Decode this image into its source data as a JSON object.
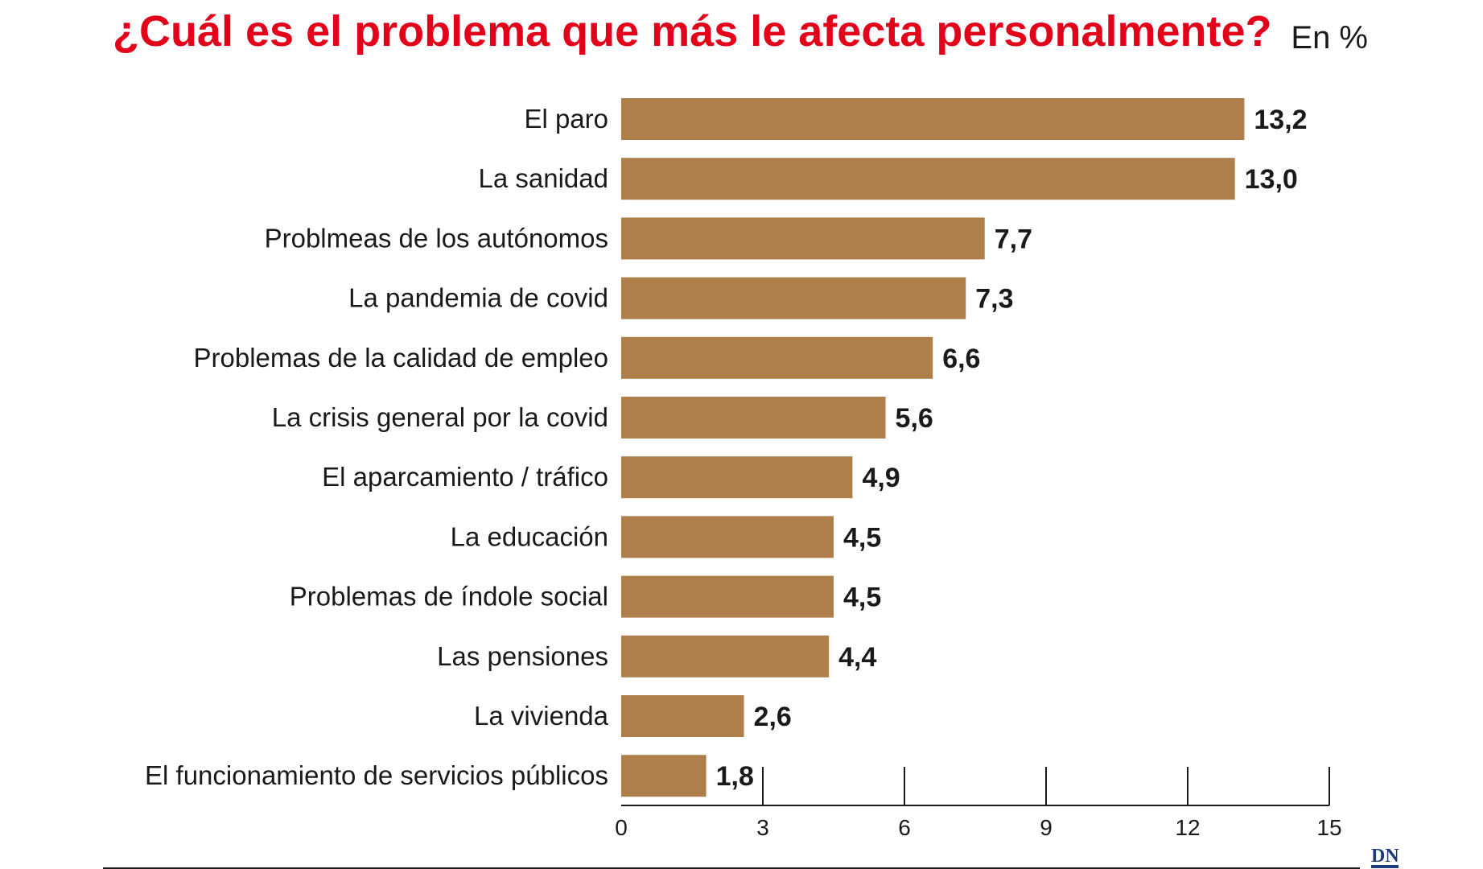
{
  "chart_data": {
    "type": "bar",
    "orientation": "horizontal",
    "title": "¿Cuál es el problema que más le afecta personalmente?",
    "unit_label": "En %",
    "categories": [
      "El paro",
      "La sanidad",
      "Problmeas de los autónomos",
      "La pandemia de covid",
      "Problemas de la calidad de empleo",
      "La crisis general por la covid",
      "El aparcamiento / tráfico",
      "La educación",
      "Problemas de índole social",
      "Las pensiones",
      "La vivienda",
      "El funcionamiento de  servicios públicos"
    ],
    "values": [
      13.2,
      13.0,
      7.7,
      7.3,
      6.6,
      5.6,
      4.9,
      4.5,
      4.5,
      4.4,
      2.6,
      1.8
    ],
    "value_labels": [
      "13,2",
      "13,0",
      "7,7",
      "7,3",
      "6,6",
      "5,6",
      "4,9",
      "4,5",
      "4,5",
      "4,4",
      "2,6",
      "1,8"
    ],
    "xlim": [
      0,
      15
    ],
    "xticks": [
      0,
      3,
      6,
      9,
      12,
      15
    ],
    "xtick_labels": [
      "0",
      "3",
      "6",
      "9",
      "12",
      "15"
    ],
    "grid": false,
    "bar_color": "#ae7f4b",
    "title_color": "#e2001a"
  },
  "source_logo": "DN",
  "logo_color": "#1b3a7a"
}
